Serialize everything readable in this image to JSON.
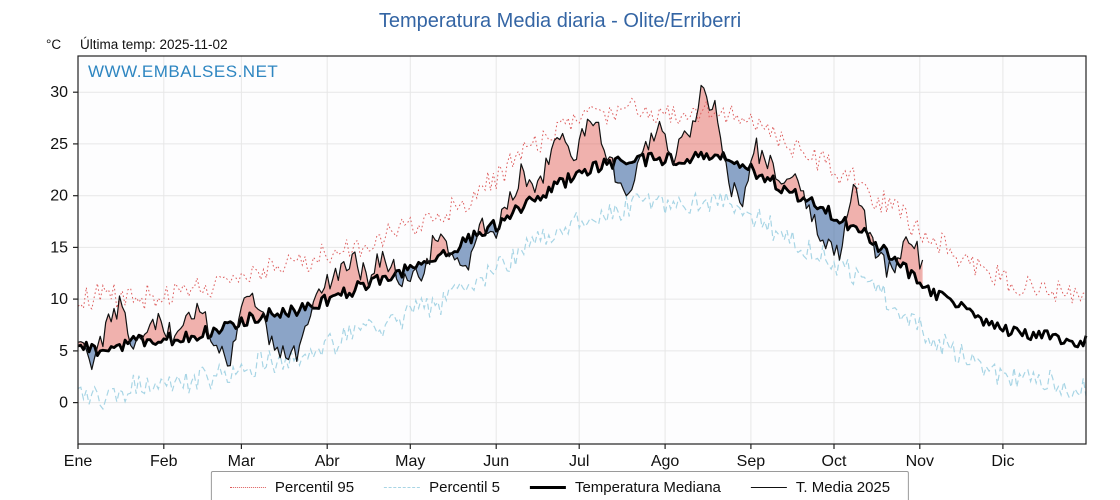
{
  "header": {
    "title": "Temperatura Media diaria - Olite/Erriberri",
    "units_label": "°C",
    "last_temp_label": "Última temp: 2025-11-02",
    "watermark": "WWW.EMBALSES.NET"
  },
  "colors": {
    "title": "#3465a4",
    "watermark": "#2e86c1",
    "p95": "#dd5c5c",
    "p5": "#a8d5e5",
    "median": "#000000",
    "t2025": "#111111",
    "fill_above": "rgba(225,85,75,0.45)",
    "fill_below": "rgba(70,110,165,0.62)",
    "grid": "#e7e7e7",
    "axis": "#222222",
    "tick_text": "#111111"
  },
  "legend": {
    "items": [
      {
        "label": "Percentil 95",
        "swatch": "p95"
      },
      {
        "label": "Percentil 5",
        "swatch": "p5"
      },
      {
        "label": "Temperatura Mediana",
        "swatch": "median"
      },
      {
        "label": "T. Media 2025",
        "swatch": "t2025"
      }
    ]
  },
  "chart_data": {
    "type": "line",
    "title": "Temperatura Media diaria - Olite/Erriberri",
    "xlabel": "",
    "ylabel": "°C",
    "x_tick_labels": [
      "Ene",
      "Feb",
      "Mar",
      "Abr",
      "May",
      "Jun",
      "Jul",
      "Ago",
      "Sep",
      "Oct",
      "Nov",
      "Dic"
    ],
    "month_start_days": [
      0,
      31,
      59,
      90,
      120,
      151,
      181,
      212,
      243,
      273,
      304,
      334
    ],
    "days_in_year": 365,
    "yticks": [
      0,
      5,
      10,
      15,
      20,
      25,
      30
    ],
    "ylim": [
      -4,
      33.5
    ],
    "grid": true,
    "legend_position": "bottom",
    "annotation_last_date": "2025-11-02",
    "series": [
      {
        "name": "Percentil 95",
        "style": "dotted-red",
        "step": 10,
        "values": [
          10.0,
          10.5,
          10.0,
          10.5,
          11.0,
          11.5,
          12.5,
          13.0,
          13.5,
          14.5,
          15.0,
          16.0,
          17.0,
          18.0,
          19.5,
          21.5,
          24.0,
          26.0,
          27.5,
          28.0,
          28.5,
          28.0,
          28.0,
          28.5,
          27.5,
          26.0,
          24.5,
          23.0,
          21.5,
          19.5,
          17.5,
          15.5,
          14.0,
          12.5,
          11.5,
          11.0,
          10.5
        ]
      },
      {
        "name": "Percentil 5",
        "style": "dashed-lightblue",
        "step": 10,
        "values": [
          1.0,
          0.5,
          1.5,
          1.5,
          2.0,
          2.5,
          3.5,
          4.0,
          4.5,
          5.5,
          6.5,
          7.5,
          8.5,
          9.5,
          11.0,
          12.5,
          14.5,
          16.0,
          17.5,
          18.5,
          19.0,
          19.0,
          19.0,
          19.5,
          18.5,
          17.0,
          15.5,
          14.0,
          12.5,
          10.5,
          8.0,
          6.0,
          4.5,
          3.0,
          2.0,
          2.0,
          1.5
        ]
      },
      {
        "name": "Temperatura Mediana",
        "style": "thick-black",
        "step": 10,
        "values": [
          5.5,
          5.0,
          6.0,
          6.0,
          6.5,
          7.0,
          8.0,
          8.5,
          9.0,
          10.0,
          11.0,
          12.0,
          13.0,
          14.0,
          15.5,
          17.0,
          19.0,
          20.5,
          22.0,
          23.0,
          23.5,
          23.5,
          23.5,
          24.0,
          23.0,
          21.5,
          20.0,
          18.5,
          17.0,
          15.0,
          12.5,
          10.5,
          9.0,
          7.5,
          6.5,
          6.5,
          6.0
        ]
      },
      {
        "name": "T. Media 2025",
        "style": "thin-black",
        "step": 5,
        "end_day": 305,
        "values": [
          6.5,
          2.5,
          7.5,
          9.5,
          5.0,
          7.5,
          8.5,
          5.5,
          8.0,
          9.0,
          5.5,
          4.0,
          10.5,
          9.0,
          6.0,
          4.5,
          5.0,
          10.0,
          11.5,
          13.0,
          13.5,
          12.0,
          14.5,
          12.5,
          11.5,
          13.0,
          16.5,
          13.5,
          13.0,
          17.5,
          15.5,
          19.5,
          22.0,
          20.0,
          23.5,
          25.5,
          24.0,
          27.5,
          25.0,
          21.5,
          20.5,
          24.5,
          26.5,
          24.0,
          25.5,
          30.0,
          28.5,
          21.0,
          20.0,
          24.5,
          23.0,
          21.0,
          21.5,
          17.5,
          15.5,
          14.5,
          20.5,
          17.0,
          13.5,
          12.5,
          16.0,
          13.5
        ]
      }
    ],
    "fills": [
      {
        "name": "above-median-2025",
        "between": [
          "T. Media 2025",
          "Temperatura Mediana"
        ],
        "when": "above",
        "color_key": "fill_above"
      },
      {
        "name": "below-median-2025",
        "between": [
          "T. Media 2025",
          "Temperatura Mediana"
        ],
        "when": "below",
        "color_key": "fill_below"
      }
    ]
  }
}
